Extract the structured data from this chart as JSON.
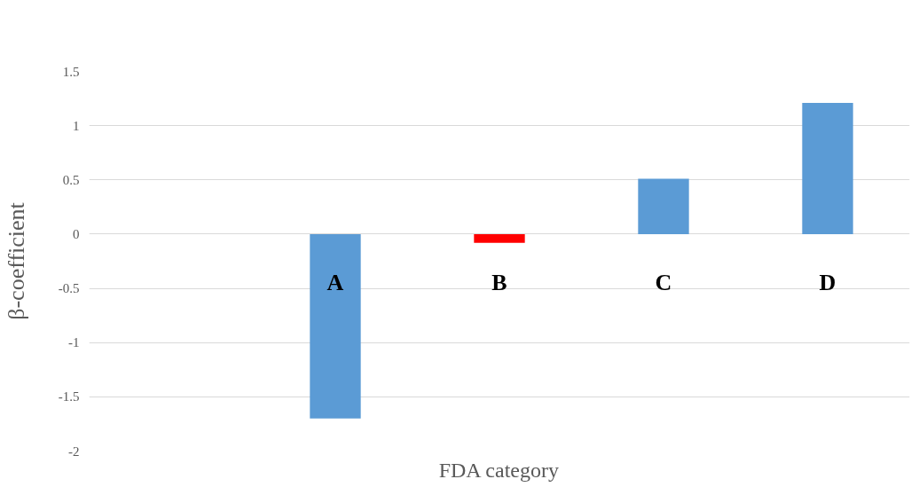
{
  "chart_data": {
    "type": "bar",
    "xlabel": "FDA category",
    "ylabel": "β-coefficient",
    "categories": [
      null,
      "A",
      "B",
      "C",
      "D"
    ],
    "values": [
      null,
      -1.7,
      -0.08,
      0.51,
      1.21
    ],
    "colors": [
      "#5b9bd5",
      "#5b9bd5",
      "#ff0000",
      "#5b9bd5",
      "#5b9bd5"
    ],
    "ylim": [
      -2,
      1.5
    ],
    "yticks": [
      -2,
      -1.5,
      -1,
      -0.5,
      0,
      0.5,
      1,
      1.5
    ],
    "grid": "y"
  }
}
